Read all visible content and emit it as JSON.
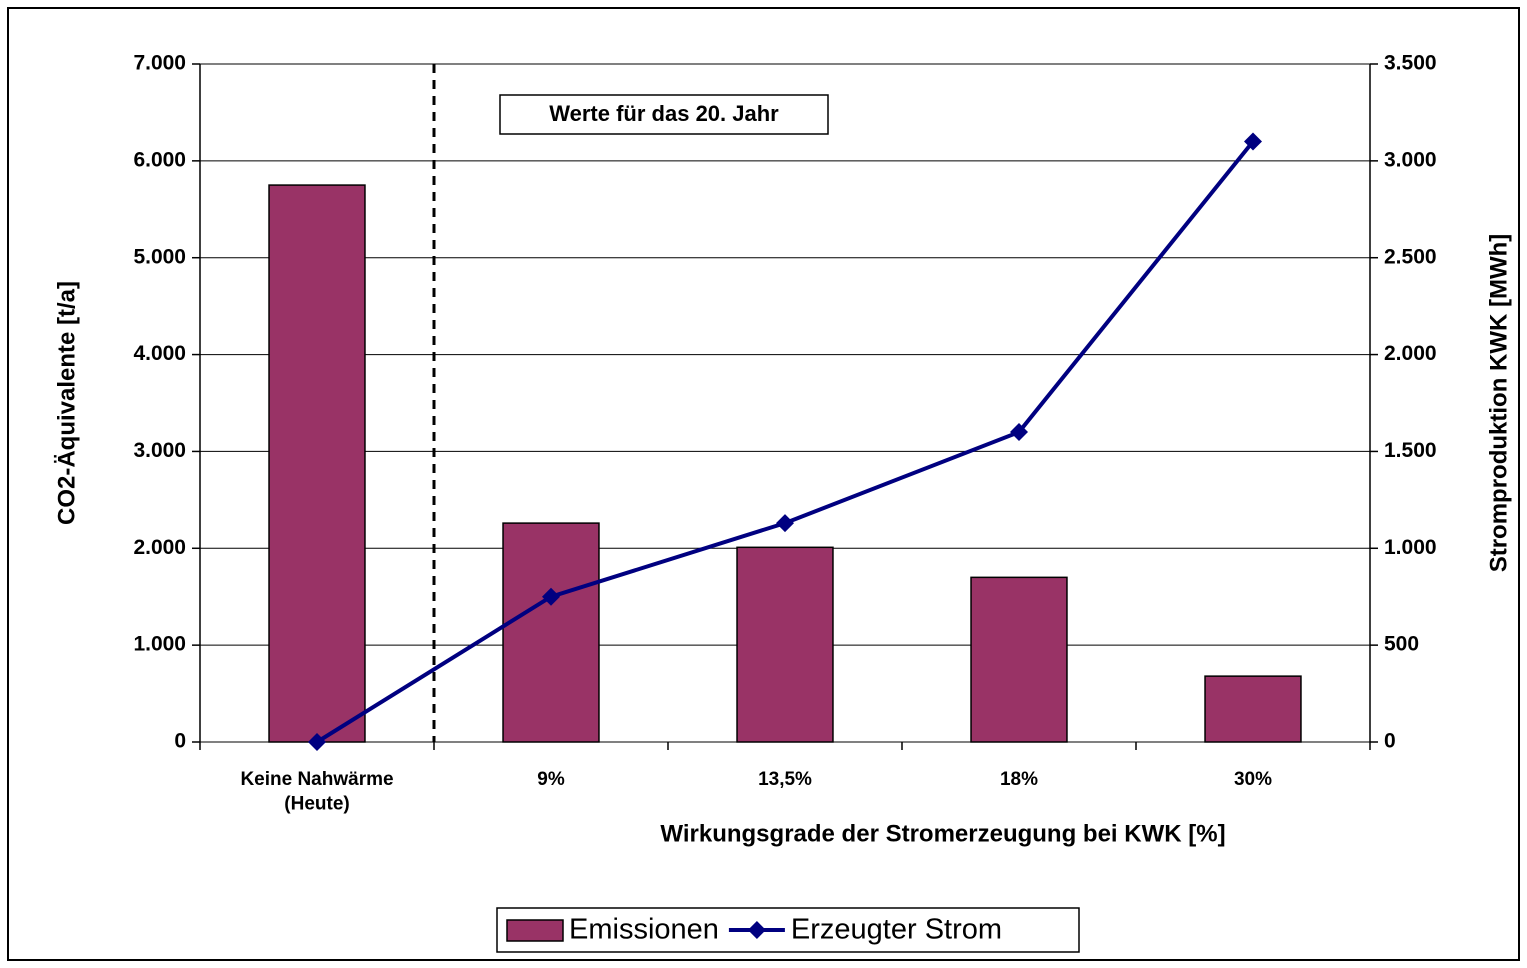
{
  "chart_data": {
    "type": "bar_line",
    "categories": [
      "Keine Nahwärme\n(Heute)",
      "9%",
      "13,5%",
      "18%",
      "30%"
    ],
    "series": [
      {
        "name": "Emissionen",
        "type": "bar",
        "color": "#993366",
        "values": [
          5750,
          2260,
          2010,
          1700,
          680
        ]
      },
      {
        "name": "Erzeugter Strom",
        "type": "line",
        "axis": "y2",
        "color": "#000080",
        "values": [
          0,
          750,
          1130,
          1600,
          3100
        ]
      }
    ],
    "annotation": "Werte für das 20. Jahr",
    "xlabel": "Wirkungsgrade der Stromerzeugung bei KWK [%]",
    "ylabel": "CO2-Äquivalente [t/a]",
    "y2label": "Stromproduktion KWK [MWh]",
    "ylim": [
      0,
      7000
    ],
    "yticks": [
      0,
      {
        "value": 1000,
        "label": "1.000"
      },
      {
        "value": 2000,
        "label": "2.000"
      },
      {
        "value": 3000,
        "label": "3.000"
      },
      {
        "value": 4000,
        "label": "4.000"
      },
      {
        "value": 5000,
        "label": "5.000"
      },
      {
        "value": 6000,
        "label": "6.000"
      },
      {
        "value": 7000,
        "label": "7.000"
      }
    ],
    "y2lim": [
      0,
      3500
    ],
    "y2ticks": [
      0,
      500,
      {
        "value": 1000,
        "label": "1.000"
      },
      {
        "value": 1500,
        "label": "1.500"
      },
      {
        "value": 2000,
        "label": "2.000"
      },
      {
        "value": 2500,
        "label": "2.500"
      },
      {
        "value": 3000,
        "label": "3.000"
      },
      {
        "value": 3500,
        "label": "3.500"
      }
    ],
    "grid": true,
    "legend": "bottom"
  }
}
